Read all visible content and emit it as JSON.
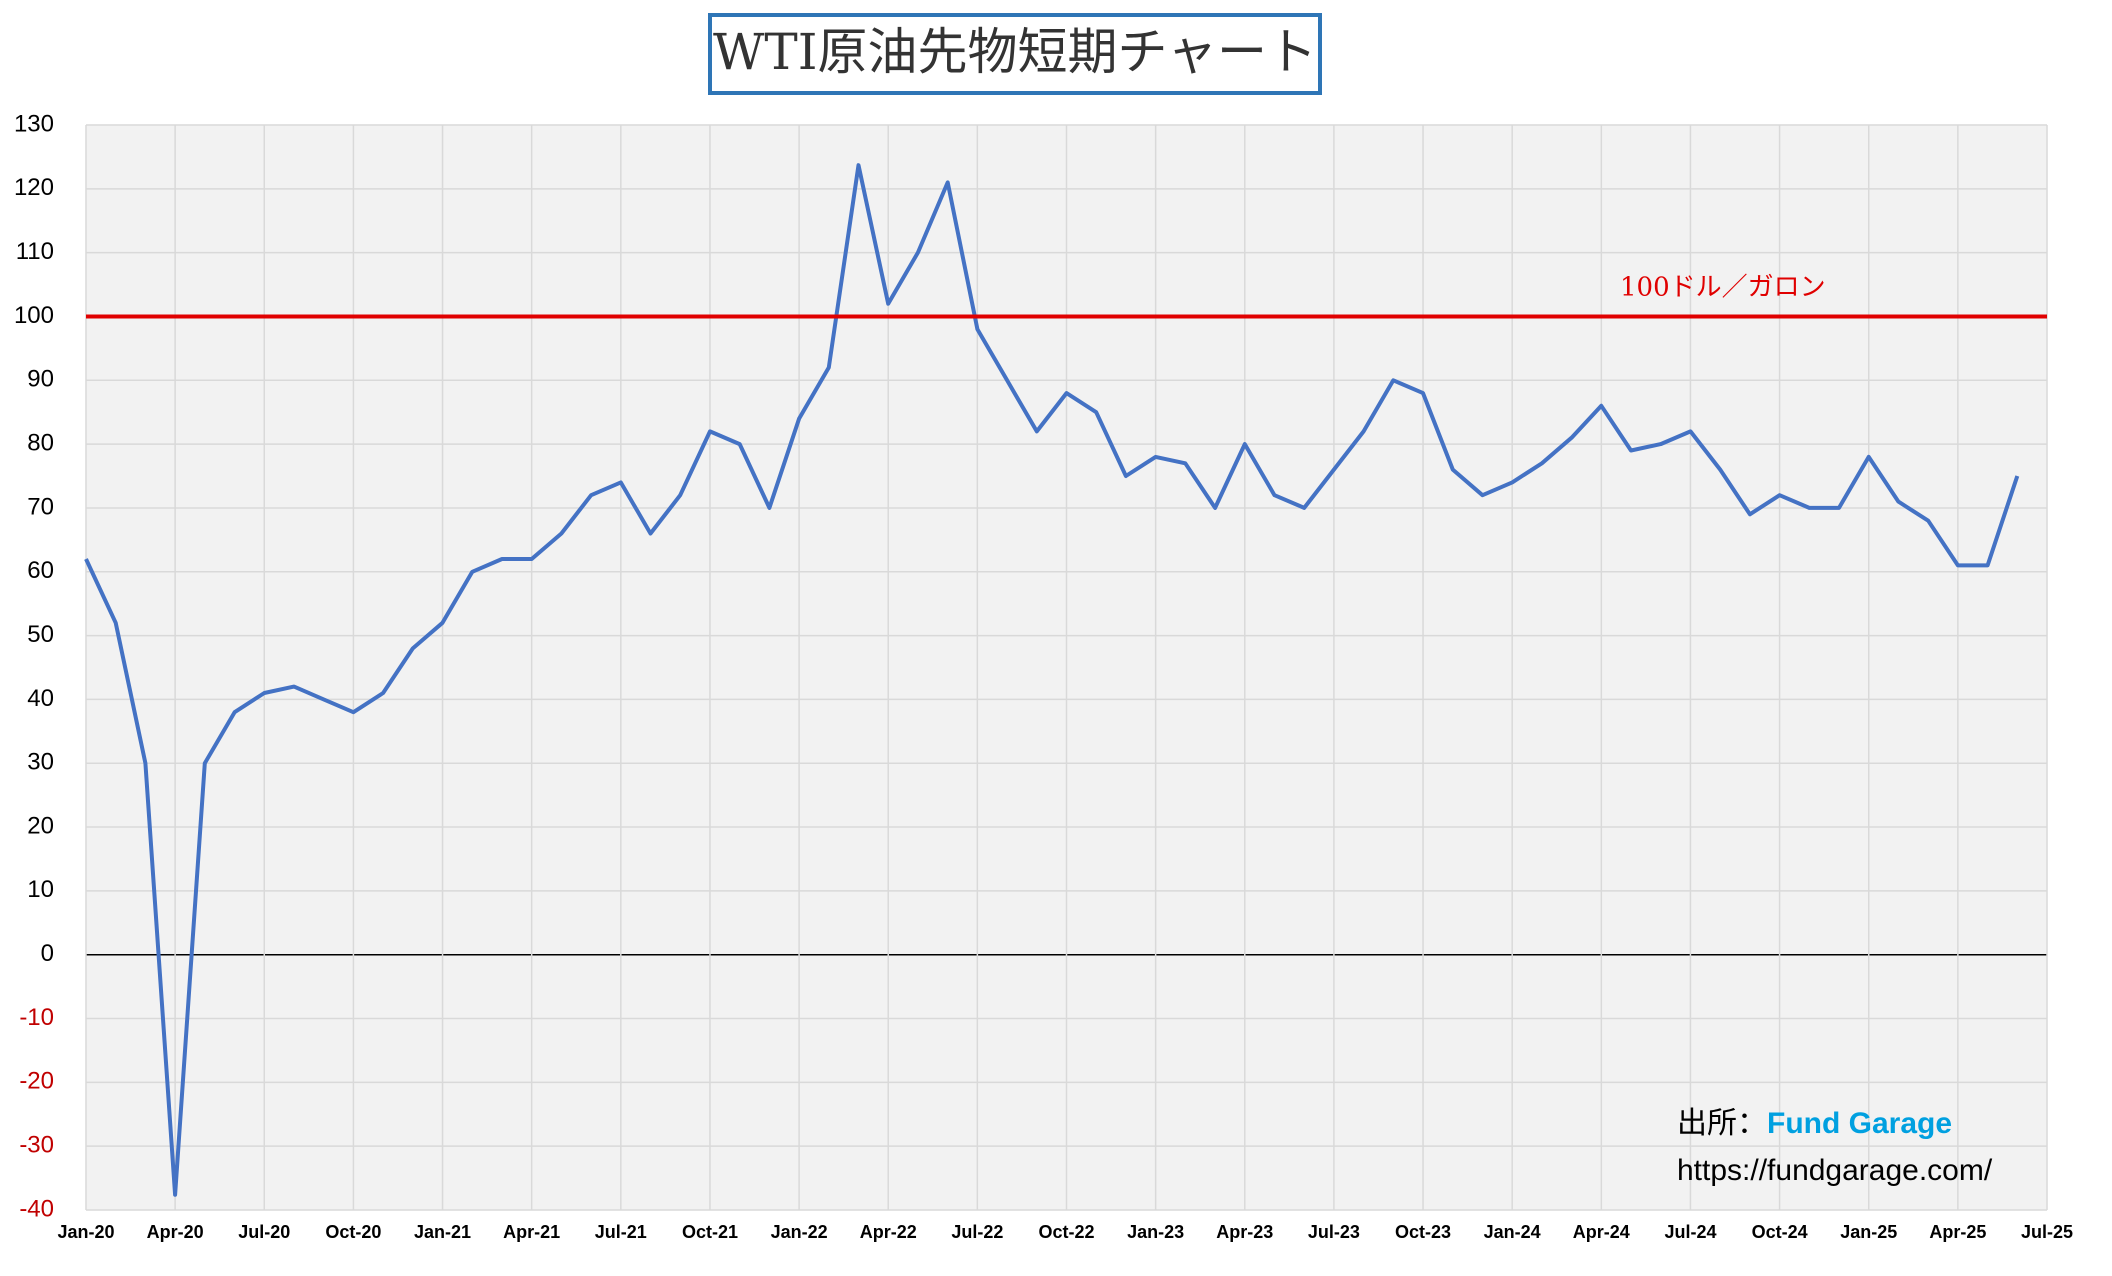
{
  "chart_data": {
    "type": "line",
    "title": "WTI原油先物短期チャート",
    "x": [
      "Jan-20",
      "Feb-20",
      "Mar-20",
      "Apr-20",
      "May-20",
      "Jun-20",
      "Jul-20",
      "Aug-20",
      "Sep-20",
      "Oct-20",
      "Nov-20",
      "Dec-20",
      "Jan-21",
      "Feb-21",
      "Mar-21",
      "Apr-21",
      "May-21",
      "Jun-21",
      "Jul-21",
      "Aug-21",
      "Sep-21",
      "Oct-21",
      "Nov-21",
      "Dec-21",
      "Jan-22",
      "Feb-22",
      "Mar-22",
      "Apr-22",
      "May-22",
      "Jun-22",
      "Jul-22",
      "Aug-22",
      "Sep-22",
      "Oct-22",
      "Nov-22",
      "Dec-22",
      "Jan-23",
      "Feb-23",
      "Mar-23",
      "Apr-23",
      "May-23",
      "Jun-23",
      "Jul-23",
      "Aug-23",
      "Sep-23",
      "Oct-23",
      "Nov-23",
      "Dec-23",
      "Jan-24",
      "Feb-24",
      "Mar-24",
      "Apr-24",
      "May-24",
      "Jun-24",
      "Jul-24",
      "Aug-24",
      "Sep-24",
      "Oct-24",
      "Nov-24",
      "Dec-24",
      "Jan-25",
      "Feb-25",
      "Mar-25",
      "Apr-25",
      "May-25",
      "Jun-25"
    ],
    "series": [
      {
        "name": "WTI",
        "color": "#4472c4",
        "values": [
          62,
          52,
          30,
          -37.6,
          30,
          38,
          41,
          42,
          40,
          38,
          41,
          48,
          52,
          60,
          62,
          62,
          66,
          72,
          74,
          66,
          72,
          82,
          80,
          70,
          84,
          92,
          123.7,
          102,
          110,
          121,
          98,
          90,
          82,
          88,
          85,
          75,
          78,
          77,
          70,
          80,
          72,
          70,
          76,
          82,
          90,
          88,
          76,
          72,
          74,
          77,
          81,
          86,
          79,
          80,
          82,
          76,
          69,
          72,
          70,
          70,
          78,
          71,
          68,
          61,
          61,
          75
        ]
      }
    ],
    "xlim": [
      "Jan-20",
      "Jul-25"
    ],
    "xticks": [
      "Jan-20",
      "Apr-20",
      "Jul-20",
      "Oct-20",
      "Jan-21",
      "Apr-21",
      "Jul-21",
      "Oct-21",
      "Jan-22",
      "Apr-22",
      "Jul-22",
      "Oct-22",
      "Jan-23",
      "Apr-23",
      "Jul-23",
      "Oct-23",
      "Jan-24",
      "Apr-24",
      "Jul-24",
      "Oct-24",
      "Jan-25",
      "Apr-25",
      "Jul-25"
    ],
    "ylim": [
      -40,
      130
    ],
    "yticks": [
      -40,
      -30,
      -20,
      -10,
      0,
      10,
      20,
      30,
      40,
      50,
      60,
      70,
      80,
      90,
      100,
      110,
      120,
      130
    ],
    "grid": true,
    "negative_tick_color": "#c00000",
    "reference_line": {
      "value": 100,
      "label": "100ドル／ガロン",
      "color": "#e00000"
    },
    "source": {
      "prefix": "出所：",
      "name": "Fund Garage",
      "url": "https://fundgarage.com/"
    }
  }
}
